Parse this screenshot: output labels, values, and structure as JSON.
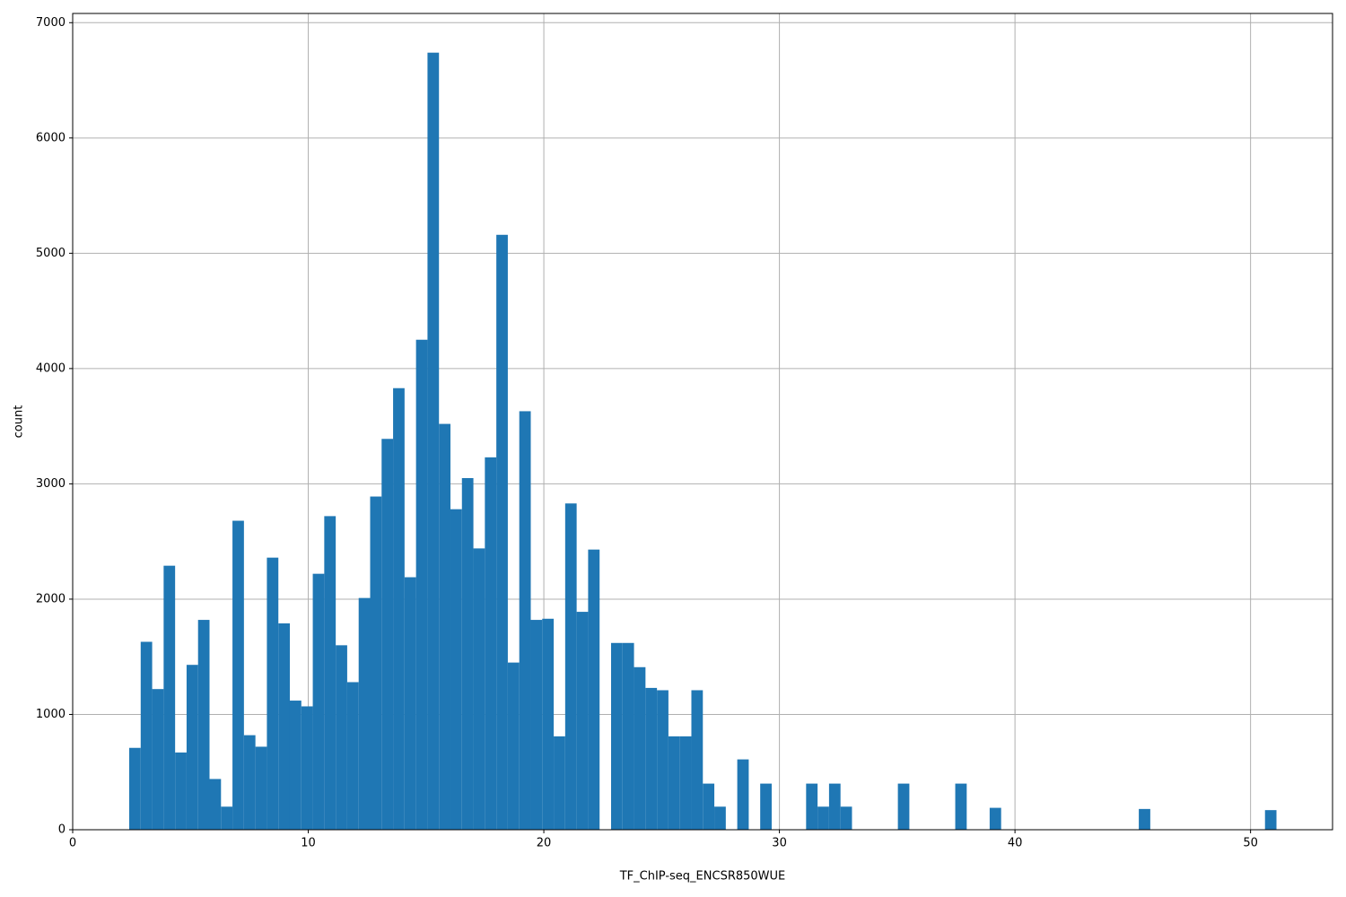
{
  "chart_data": {
    "type": "histogram",
    "xlabel": "TF_ChIP-seq_ENCSR850WUE",
    "ylabel": "count",
    "color": "#1f77b4",
    "grid": true,
    "bins": [
      2.4,
      2.887,
      3.374,
      3.861,
      4.348,
      4.835,
      5.322,
      5.809,
      6.296,
      6.783,
      7.27,
      7.757,
      8.244,
      8.731,
      9.218,
      9.705,
      10.192,
      10.679,
      11.166,
      11.653,
      12.14,
      12.627,
      13.114,
      13.601,
      14.088,
      14.575,
      15.062,
      15.549,
      16.036,
      16.523,
      17.01,
      17.497,
      17.984,
      18.471,
      18.958,
      19.445,
      19.932,
      20.419,
      20.906,
      21.393,
      21.88,
      22.367,
      22.854,
      23.341,
      23.828,
      24.315,
      24.802,
      25.289,
      25.776,
      26.263,
      26.75,
      27.237,
      27.724,
      28.211,
      28.698,
      29.185,
      29.672,
      30.159,
      30.646,
      31.133,
      31.62,
      32.107,
      32.594,
      33.081,
      33.568,
      34.055,
      34.542,
      35.029,
      35.516,
      36.003,
      36.49,
      36.977,
      37.464,
      37.951,
      38.438,
      38.925,
      39.412,
      39.899,
      40.386,
      40.873,
      41.36,
      41.847,
      42.334,
      42.821,
      43.308,
      43.795,
      44.282,
      44.769,
      45.256,
      45.743,
      46.23,
      46.717,
      47.204,
      47.691,
      48.178,
      48.665,
      49.152,
      49.639,
      50.126,
      50.613,
      51.1
    ],
    "values": [
      710,
      1630,
      1220,
      2290,
      670,
      1430,
      1820,
      440,
      200,
      2680,
      820,
      720,
      2360,
      1790,
      1120,
      1070,
      2220,
      2720,
      1600,
      1280,
      2010,
      2890,
      3390,
      3830,
      2190,
      4250,
      6740,
      3520,
      2780,
      3050,
      2440,
      3230,
      5160,
      1450,
      3630,
      1820,
      1830,
      810,
      2830,
      1890,
      2430,
      0,
      1620,
      1620,
      1410,
      1230,
      1210,
      810,
      810,
      1210,
      400,
      200,
      0,
      610,
      0,
      400,
      0,
      0,
      0,
      400,
      200,
      400,
      200,
      0,
      0,
      0,
      0,
      400,
      0,
      0,
      0,
      0,
      400,
      0,
      0,
      190,
      0,
      0,
      0,
      0,
      0,
      0,
      0,
      0,
      0,
      0,
      0,
      0,
      180,
      0,
      0,
      0,
      0,
      0,
      0,
      0,
      0,
      0,
      0,
      170
    ],
    "xlim": [
      0,
      53.48
    ],
    "xticks": [
      0,
      10,
      20,
      30,
      40,
      50
    ],
    "ylim": [
      0,
      7080
    ],
    "yticks": [
      0,
      1000,
      2000,
      3000,
      4000,
      5000,
      6000,
      7000
    ]
  }
}
